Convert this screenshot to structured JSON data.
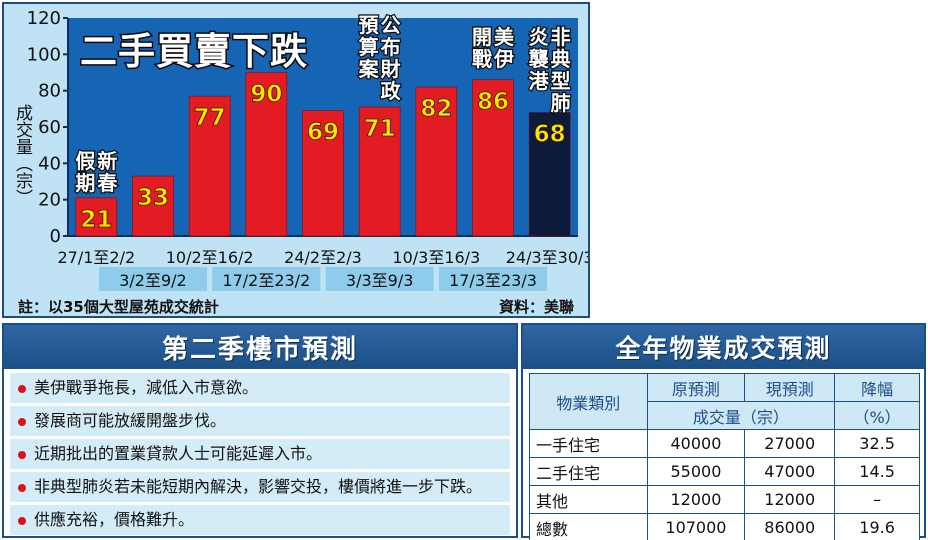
{
  "chart_data": {
    "type": "bar",
    "title": "二手買賣下跌",
    "ylabel": "成交量（宗）",
    "ylim": [
      0,
      120
    ],
    "yticks": [
      0,
      20,
      40,
      60,
      80,
      100,
      120
    ],
    "categories": [
      "27/1至2/2",
      "3/2至9/2",
      "10/2至16/2",
      "17/2至23/2",
      "24/2至2/3",
      "3/3至9/3",
      "10/3至16/3",
      "17/3至23/3",
      "24/3至30/3"
    ],
    "values": [
      21,
      33,
      77,
      90,
      69,
      71,
      82,
      86,
      68
    ],
    "bar_colors": [
      "#e31b23",
      "#e31b23",
      "#e31b23",
      "#e31b23",
      "#e31b23",
      "#e31b23",
      "#e31b23",
      "#e31b23",
      "#0e1a3a"
    ],
    "value_label_color": "#ffe600",
    "annotations": [
      {
        "bar": 0,
        "text": "新春假期"
      },
      {
        "bar": 5,
        "text": "公布財政預算案"
      },
      {
        "bar": 7,
        "text": "美伊開戰"
      },
      {
        "bar": 8,
        "text": "非典型肺炎襲港"
      }
    ],
    "grid": false,
    "legend": "none"
  },
  "notes": {
    "left": "註：以35個大型屋苑成交統計",
    "right": "資料：美聯"
  },
  "forecast": {
    "title": "第二季樓市預測",
    "items": [
      "美伊戰爭拖長，減低入市意欲。",
      "發展商可能放緩開盤步伐。",
      "近期批出的置業貸款人士可能延遲入市。",
      "非典型肺炎若未能短期內解決，影響交投，樓價將進一步下跌。",
      "供應充裕，價格難升。"
    ]
  },
  "table": {
    "title": "全年物業成交預測",
    "headers": {
      "type": "物業類別",
      "original": "原預測",
      "current": "現預測",
      "volume": "成交量（宗）",
      "drop": "降幅",
      "drop_unit": "（%）"
    },
    "rows": [
      {
        "type": "一手住宅",
        "original": "40000",
        "current": "27000",
        "drop": "32.5"
      },
      {
        "type": "二手住宅",
        "original": "55000",
        "current": "47000",
        "drop": "14.5"
      },
      {
        "type": "其他",
        "original": "12000",
        "current": "12000",
        "drop": "–"
      },
      {
        "type": "總數",
        "original": "107000",
        "current": "86000",
        "drop": "19.6"
      }
    ]
  }
}
